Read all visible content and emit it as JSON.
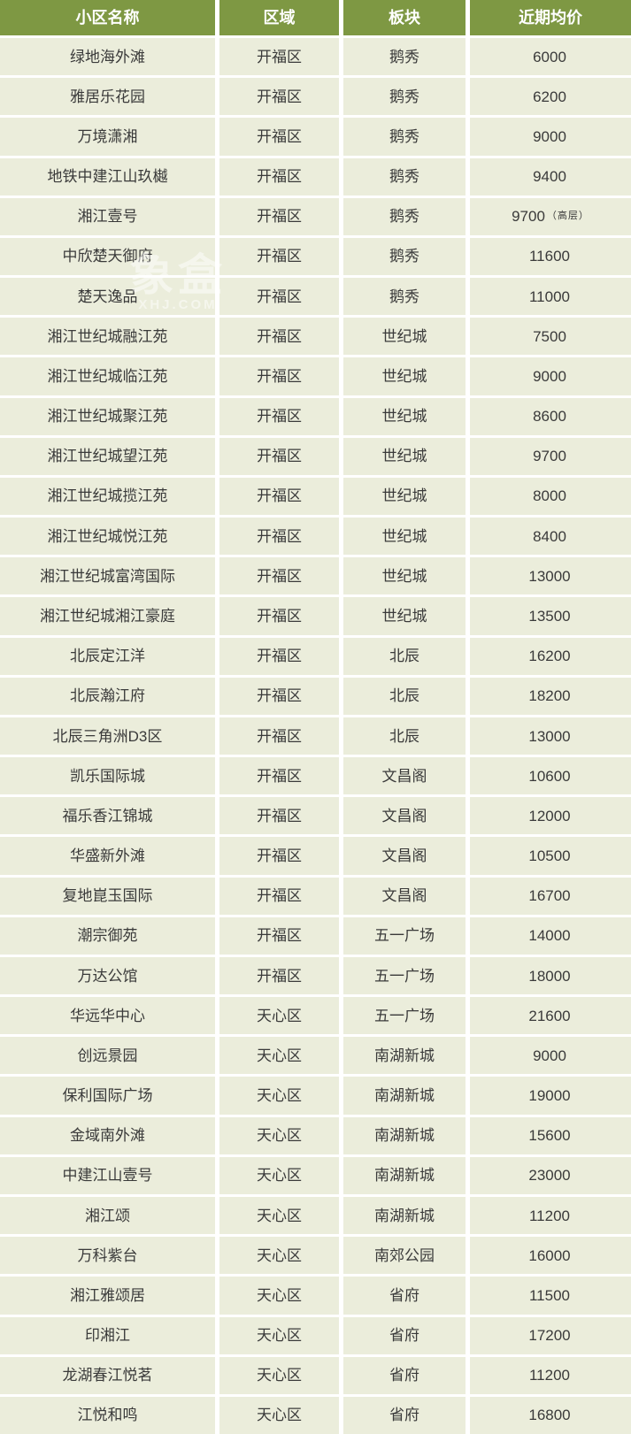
{
  "watermark": {
    "text": "象盒",
    "subtext": "XHJ.COM"
  },
  "colors": {
    "header_bg": "#7e9843",
    "header_text": "#ffffff",
    "row_bg": "#ebeddb",
    "cell_text": "#3a3a3a",
    "grid_gap": "#ffffff"
  },
  "chart_data": {
    "type": "table",
    "columns": [
      "小区名称",
      "区域",
      "板块",
      "近期均价"
    ],
    "rows": [
      {
        "name": "绿地海外滩",
        "district": "开福区",
        "plate": "鹅秀",
        "price": "6000",
        "price_note": ""
      },
      {
        "name": "雅居乐花园",
        "district": "开福区",
        "plate": "鹅秀",
        "price": "6200",
        "price_note": ""
      },
      {
        "name": "万境潇湘",
        "district": "开福区",
        "plate": "鹅秀",
        "price": "9000",
        "price_note": ""
      },
      {
        "name": "地铁中建江山玖樾",
        "district": "开福区",
        "plate": "鹅秀",
        "price": "9400",
        "price_note": ""
      },
      {
        "name": "湘江壹号",
        "district": "开福区",
        "plate": "鹅秀",
        "price": "9700",
        "price_note": "（高层）"
      },
      {
        "name": "中欣楚天御府",
        "district": "开福区",
        "plate": "鹅秀",
        "price": "11600",
        "price_note": ""
      },
      {
        "name": "楚天逸品",
        "district": "开福区",
        "plate": "鹅秀",
        "price": "11000",
        "price_note": ""
      },
      {
        "name": "湘江世纪城融江苑",
        "district": "开福区",
        "plate": "世纪城",
        "price": "7500",
        "price_note": ""
      },
      {
        "name": "湘江世纪城临江苑",
        "district": "开福区",
        "plate": "世纪城",
        "price": "9000",
        "price_note": ""
      },
      {
        "name": "湘江世纪城聚江苑",
        "district": "开福区",
        "plate": "世纪城",
        "price": "8600",
        "price_note": ""
      },
      {
        "name": "湘江世纪城望江苑",
        "district": "开福区",
        "plate": "世纪城",
        "price": "9700",
        "price_note": ""
      },
      {
        "name": "湘江世纪城揽江苑",
        "district": "开福区",
        "plate": "世纪城",
        "price": "8000",
        "price_note": ""
      },
      {
        "name": "湘江世纪城悦江苑",
        "district": "开福区",
        "plate": "世纪城",
        "price": "8400",
        "price_note": ""
      },
      {
        "name": "湘江世纪城富湾国际",
        "district": "开福区",
        "plate": "世纪城",
        "price": "13000",
        "price_note": ""
      },
      {
        "name": "湘江世纪城湘江豪庭",
        "district": "开福区",
        "plate": "世纪城",
        "price": "13500",
        "price_note": ""
      },
      {
        "name": "北辰定江洋",
        "district": "开福区",
        "plate": "北辰",
        "price": "16200",
        "price_note": ""
      },
      {
        "name": "北辰瀚江府",
        "district": "开福区",
        "plate": "北辰",
        "price": "18200",
        "price_note": ""
      },
      {
        "name": "北辰三角洲D3区",
        "district": "开福区",
        "plate": "北辰",
        "price": "13000",
        "price_note": ""
      },
      {
        "name": "凯乐国际城",
        "district": "开福区",
        "plate": "文昌阁",
        "price": "10600",
        "price_note": ""
      },
      {
        "name": "福乐香江锦城",
        "district": "开福区",
        "plate": "文昌阁",
        "price": "12000",
        "price_note": ""
      },
      {
        "name": "华盛新外滩",
        "district": "开福区",
        "plate": "文昌阁",
        "price": "10500",
        "price_note": ""
      },
      {
        "name": "复地崑玉国际",
        "district": "开福区",
        "plate": "文昌阁",
        "price": "16700",
        "price_note": ""
      },
      {
        "name": "潮宗御苑",
        "district": "开福区",
        "plate": "五一广场",
        "price": "14000",
        "price_note": ""
      },
      {
        "name": "万达公馆",
        "district": "开福区",
        "plate": "五一广场",
        "price": "18000",
        "price_note": ""
      },
      {
        "name": "华远华中心",
        "district": "天心区",
        "plate": "五一广场",
        "price": "21600",
        "price_note": ""
      },
      {
        "name": "创远景园",
        "district": "天心区",
        "plate": "南湖新城",
        "price": "9000",
        "price_note": ""
      },
      {
        "name": "保利国际广场",
        "district": "天心区",
        "plate": "南湖新城",
        "price": "19000",
        "price_note": ""
      },
      {
        "name": "金域南外滩",
        "district": "天心区",
        "plate": "南湖新城",
        "price": "15600",
        "price_note": ""
      },
      {
        "name": "中建江山壹号",
        "district": "天心区",
        "plate": "南湖新城",
        "price": "23000",
        "price_note": ""
      },
      {
        "name": "湘江颂",
        "district": "天心区",
        "plate": "南湖新城",
        "price": "11200",
        "price_note": ""
      },
      {
        "name": "万科紫台",
        "district": "天心区",
        "plate": "南郊公园",
        "price": "16000",
        "price_note": ""
      },
      {
        "name": "湘江雅颂居",
        "district": "天心区",
        "plate": "省府",
        "price": "11500",
        "price_note": ""
      },
      {
        "name": "印湘江",
        "district": "天心区",
        "plate": "省府",
        "price": "17200",
        "price_note": ""
      },
      {
        "name": "龙湖春江悦茗",
        "district": "天心区",
        "plate": "省府",
        "price": "11200",
        "price_note": ""
      },
      {
        "name": "江悦和鸣",
        "district": "天心区",
        "plate": "省府",
        "price": "16800",
        "price_note": ""
      }
    ]
  }
}
